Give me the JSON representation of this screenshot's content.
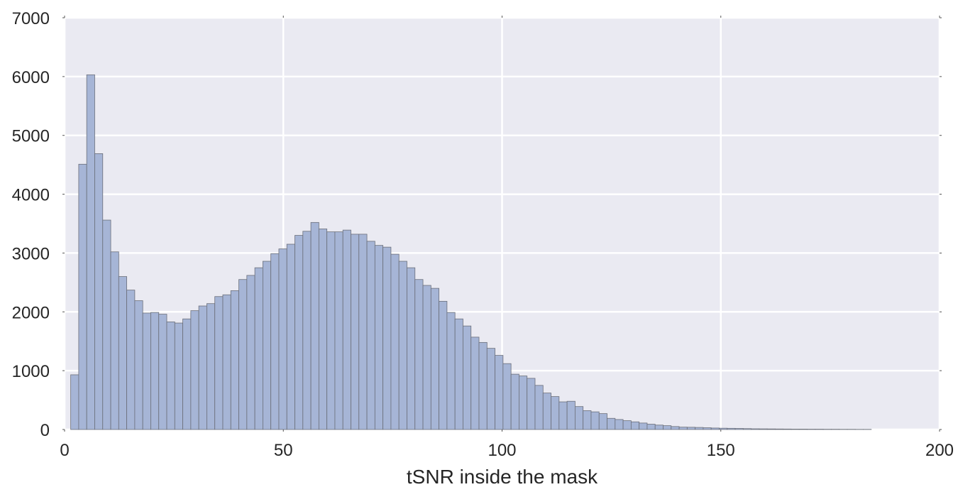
{
  "chart_data": {
    "type": "bar",
    "title": "",
    "xlabel": "tSNR inside the mask",
    "ylabel": "",
    "xlim": [
      0,
      200
    ],
    "ylim": [
      0,
      7000
    ],
    "xticks": [
      "0",
      "50",
      "100",
      "150",
      "200"
    ],
    "yticks": [
      "0",
      "1000",
      "2000",
      "3000",
      "4000",
      "5000",
      "6000",
      "7000"
    ],
    "grid": true,
    "colors": {
      "background": "#eaeaf2",
      "grid": "#ffffff",
      "bar_fill": "#a6b5d6",
      "bar_edge": "#6b6f7a"
    },
    "bin_start": 1.4,
    "bin_width": 1.83,
    "values": [
      930,
      4510,
      6030,
      4690,
      3560,
      3020,
      2600,
      2370,
      2190,
      1980,
      1990,
      1960,
      1830,
      1810,
      1880,
      2020,
      2100,
      2140,
      2260,
      2290,
      2360,
      2550,
      2620,
      2750,
      2860,
      2990,
      3070,
      3150,
      3300,
      3370,
      3520,
      3410,
      3360,
      3360,
      3390,
      3320,
      3320,
      3200,
      3130,
      3100,
      2980,
      2860,
      2750,
      2550,
      2450,
      2400,
      2180,
      1990,
      1880,
      1760,
      1570,
      1480,
      1380,
      1260,
      1120,
      940,
      910,
      870,
      750,
      620,
      560,
      470,
      480,
      390,
      320,
      300,
      270,
      190,
      170,
      150,
      130,
      110,
      90,
      75,
      65,
      50,
      40,
      38,
      35,
      30,
      25,
      22,
      20,
      18,
      15,
      12,
      11,
      10,
      9,
      8,
      7,
      7,
      6,
      6,
      5,
      5,
      4,
      4,
      3,
      3
    ]
  }
}
